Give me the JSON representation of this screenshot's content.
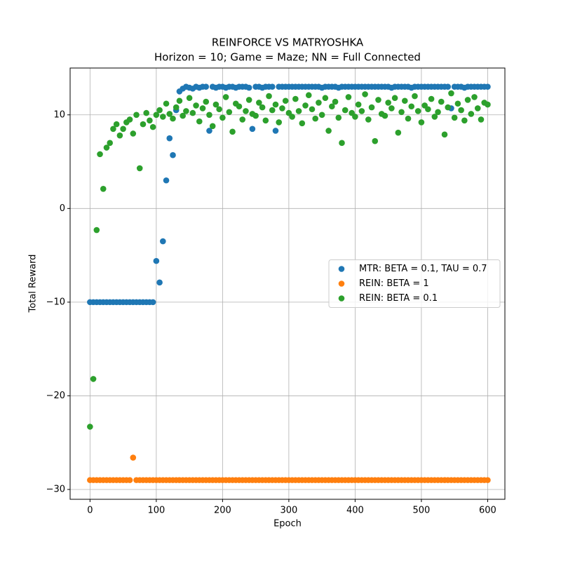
{
  "chart_data": {
    "type": "scatter",
    "title": "REINFORCE VS MATRYOSHKA",
    "subtitle": "Horizon = 10; Game = Maze; NN = Full Connected",
    "x_label": "Epoch",
    "y_label": "Total Reward",
    "x": [
      0,
      5,
      10,
      15,
      20,
      25,
      30,
      35,
      40,
      45,
      50,
      55,
      60,
      65,
      70,
      75,
      80,
      85,
      90,
      95,
      100,
      105,
      110,
      115,
      120,
      125,
      130,
      135,
      140,
      145,
      150,
      155,
      160,
      165,
      170,
      175,
      180,
      185,
      190,
      195,
      200,
      205,
      210,
      215,
      220,
      225,
      230,
      235,
      240,
      245,
      250,
      255,
      260,
      265,
      270,
      275,
      280,
      285,
      290,
      295,
      300,
      305,
      310,
      315,
      320,
      325,
      330,
      335,
      340,
      345,
      350,
      355,
      360,
      365,
      370,
      375,
      380,
      385,
      390,
      395,
      400,
      405,
      410,
      415,
      420,
      425,
      430,
      435,
      440,
      445,
      450,
      455,
      460,
      465,
      470,
      475,
      480,
      485,
      490,
      495,
      500,
      505,
      510,
      515,
      520,
      525,
      530,
      535,
      540,
      545,
      550,
      555,
      560,
      565,
      570,
      575,
      580,
      585,
      590,
      595,
      600
    ],
    "series": [
      {
        "name": "MTR: BETA = 0.1, TAU = 0.7",
        "color": "#1f77b4",
        "values": [
          -10,
          -10,
          -10,
          -10,
          -10,
          -10,
          -10,
          -10,
          -10,
          -10,
          -10,
          -10,
          -10,
          -10,
          -10,
          -10,
          -10,
          -10,
          -10,
          -10,
          -5.6,
          -7.9,
          -3.5,
          3.0,
          7.5,
          5.7,
          10.5,
          12.5,
          12.8,
          13,
          12.9,
          12.8,
          13,
          12.9,
          13,
          13,
          8.3,
          13,
          12.9,
          13,
          13,
          12.9,
          13,
          13,
          12.9,
          13,
          13,
          13,
          12.9,
          8.5,
          13,
          13,
          12.9,
          13,
          13,
          13,
          8.3,
          13,
          13,
          13,
          13,
          13,
          13,
          13,
          13,
          13,
          13,
          13,
          13,
          13,
          12.9,
          13,
          13,
          13,
          13,
          12.9,
          13,
          13,
          13,
          13,
          13,
          13,
          13,
          13,
          13,
          13,
          13,
          13,
          13,
          13,
          13,
          12.9,
          13,
          13,
          13,
          13,
          13,
          12.9,
          13,
          13,
          13,
          13,
          13,
          13,
          13,
          13,
          13,
          13,
          13,
          10.7,
          13,
          13,
          13,
          12.9,
          13,
          13,
          13,
          13,
          13,
          13,
          13
        ]
      },
      {
        "name": "REIN: BETA = 1",
        "color": "#ff7f0e",
        "values": [
          -29,
          -29,
          -29,
          -29,
          -29,
          -29,
          -29,
          -29,
          -29,
          -29,
          -29,
          -29,
          -29,
          -26.6,
          -29,
          -29,
          -29,
          -29,
          -29,
          -29,
          -29,
          -29,
          -29,
          -29,
          -29,
          -29,
          -29,
          -29,
          -29,
          -29,
          -29,
          -29,
          -29,
          -29,
          -29,
          -29,
          -29,
          -29,
          -29,
          -29,
          -29,
          -29,
          -29,
          -29,
          -29,
          -29,
          -29,
          -29,
          -29,
          -29,
          -29,
          -29,
          -29,
          -29,
          -29,
          -29,
          -29,
          -29,
          -29,
          -29,
          -29,
          -29,
          -29,
          -29,
          -29,
          -29,
          -29,
          -29,
          -29,
          -29,
          -29,
          -29,
          -29,
          -29,
          -29,
          -29,
          -29,
          -29,
          -29,
          -29,
          -29,
          -29,
          -29,
          -29,
          -29,
          -29,
          -29,
          -29,
          -29,
          -29,
          -29,
          -29,
          -29,
          -29,
          -29,
          -29,
          -29,
          -29,
          -29,
          -29,
          -29,
          -29,
          -29,
          -29,
          -29,
          -29,
          -29,
          -29,
          -29,
          -29,
          -29,
          -29,
          -29,
          -29,
          -29,
          -29,
          -29,
          -29,
          -29,
          -29,
          -29
        ]
      },
      {
        "name": "REIN: BETA = 0.1",
        "color": "#2ca02c",
        "values": [
          -23.3,
          -18.2,
          -2.3,
          5.8,
          2.1,
          6.5,
          7.0,
          8.5,
          9.0,
          7.8,
          8.5,
          9.2,
          9.5,
          8.0,
          10.0,
          4.3,
          9.0,
          10.2,
          9.4,
          8.7,
          10.0,
          10.5,
          9.8,
          11.2,
          10.1,
          9.6,
          10.8,
          11.5,
          9.9,
          10.4,
          11.8,
          10.2,
          11.0,
          9.3,
          10.7,
          11.4,
          10.0,
          8.8,
          11.1,
          10.6,
          9.7,
          11.9,
          10.3,
          8.2,
          11.2,
          10.9,
          9.5,
          10.4,
          11.6,
          10.1,
          9.9,
          11.3,
          10.8,
          9.4,
          12.0,
          10.5,
          11.1,
          9.2,
          10.7,
          11.5,
          10.2,
          9.8,
          11.7,
          10.4,
          9.1,
          11.0,
          12.1,
          10.6,
          9.6,
          11.3,
          10.0,
          11.8,
          8.3,
          10.9,
          11.4,
          9.7,
          7.0,
          10.5,
          11.9,
          10.2,
          9.8,
          11.1,
          10.4,
          12.2,
          9.5,
          10.8,
          7.2,
          11.6,
          10.1,
          9.9,
          11.3,
          10.7,
          11.8,
          8.1,
          10.3,
          11.5,
          9.6,
          10.9,
          12.0,
          10.4,
          9.2,
          11.0,
          10.6,
          11.7,
          9.8,
          10.3,
          11.4,
          7.9,
          10.8,
          12.3,
          9.7,
          11.2,
          10.5,
          9.4,
          11.6,
          10.1,
          11.9,
          10.7,
          9.5,
          11.3,
          11.1
        ]
      }
    ],
    "xlim": [
      -30,
      626
    ],
    "ylim": [
      -31.05,
      15.0
    ],
    "xticks": [
      0,
      100,
      200,
      300,
      400,
      500,
      600
    ],
    "yticks": [
      {
        "value": -30,
        "label": "−30"
      },
      {
        "value": -20,
        "label": "−20"
      },
      {
        "value": -10,
        "label": "−10"
      },
      0,
      10
    ],
    "grid": true,
    "legend": "center right"
  }
}
